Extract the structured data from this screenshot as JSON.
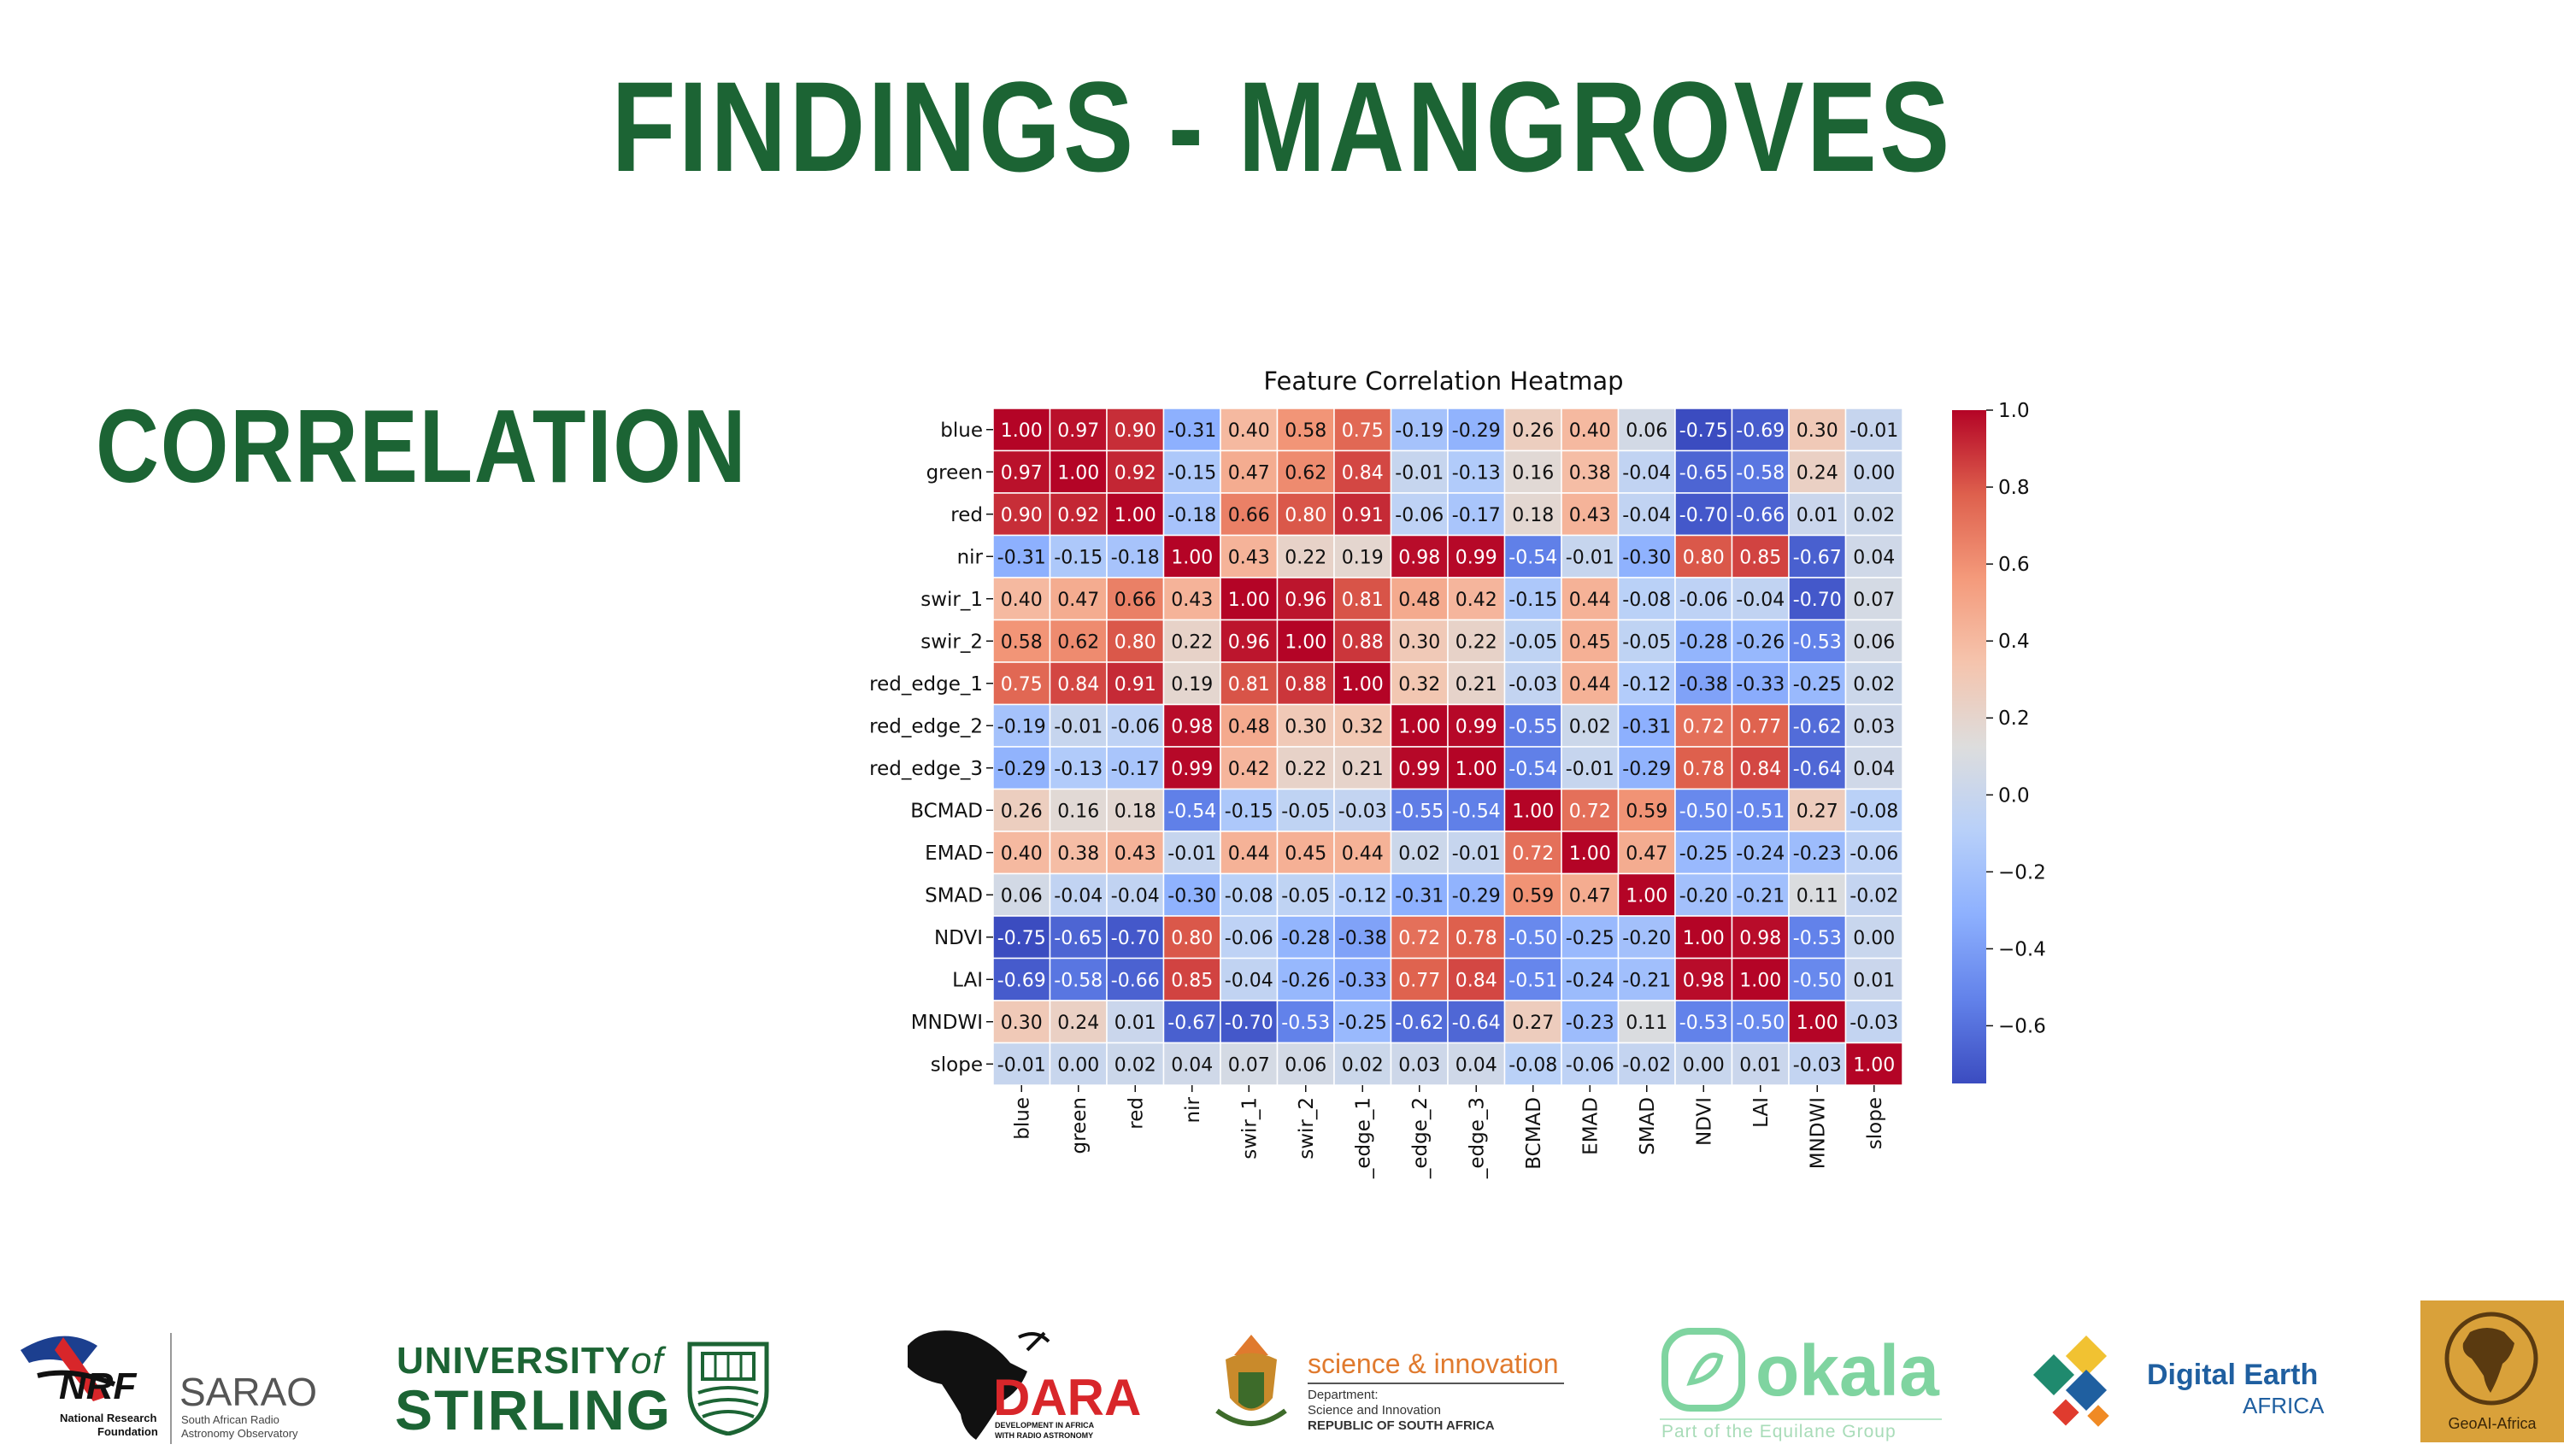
{
  "slide": {
    "title": "FINDINGS - MANGROVES",
    "section": "CORRELATION"
  },
  "chart_data": {
    "type": "heatmap",
    "title": "Feature Correlation Heatmap",
    "rows": [
      "blue",
      "green",
      "red",
      "nir",
      "swir_1",
      "swir_2",
      "red_edge_1",
      "red_edge_2",
      "red_edge_3",
      "BCMAD",
      "EMAD",
      "SMAD",
      "NDVI",
      "LAI",
      "MNDWI",
      "slope"
    ],
    "columns": [
      "blue",
      "green",
      "red",
      "nir",
      "swir_1",
      "swir_2",
      "_edge_1",
      "_edge_2",
      "_edge_3",
      "BCMAD",
      "EMAD",
      "SMAD",
      "NDVI",
      "LAI",
      "MNDWI",
      "slope"
    ],
    "values": [
      [
        1.0,
        0.97,
        0.9,
        -0.31,
        0.4,
        0.58,
        0.75,
        -0.19,
        -0.29,
        0.26,
        0.4,
        0.06,
        -0.75,
        -0.69,
        0.3,
        -0.01
      ],
      [
        0.97,
        1.0,
        0.92,
        -0.15,
        0.47,
        0.62,
        0.84,
        -0.01,
        -0.13,
        0.16,
        0.38,
        -0.04,
        -0.65,
        -0.58,
        0.24,
        -0.0
      ],
      [
        0.9,
        0.92,
        1.0,
        -0.18,
        0.66,
        0.8,
        0.91,
        -0.06,
        -0.17,
        0.18,
        0.43,
        -0.04,
        -0.7,
        -0.66,
        0.01,
        0.02
      ],
      [
        -0.31,
        -0.15,
        -0.18,
        1.0,
        0.43,
        0.22,
        0.19,
        0.98,
        0.99,
        -0.54,
        -0.01,
        -0.3,
        0.8,
        0.85,
        -0.67,
        0.04
      ],
      [
        0.4,
        0.47,
        0.66,
        0.43,
        1.0,
        0.96,
        0.81,
        0.48,
        0.42,
        -0.15,
        0.44,
        -0.08,
        -0.06,
        -0.04,
        -0.7,
        0.07
      ],
      [
        0.58,
        0.62,
        0.8,
        0.22,
        0.96,
        1.0,
        0.88,
        0.3,
        0.22,
        -0.05,
        0.45,
        -0.05,
        -0.28,
        -0.26,
        -0.53,
        0.06
      ],
      [
        0.75,
        0.84,
        0.91,
        0.19,
        0.81,
        0.88,
        1.0,
        0.32,
        0.21,
        -0.03,
        0.44,
        -0.12,
        -0.38,
        -0.33,
        -0.25,
        0.02
      ],
      [
        -0.19,
        -0.01,
        -0.06,
        0.98,
        0.48,
        0.3,
        0.32,
        1.0,
        0.99,
        -0.55,
        0.02,
        -0.31,
        0.72,
        0.77,
        -0.62,
        0.03
      ],
      [
        -0.29,
        -0.13,
        -0.17,
        0.99,
        0.42,
        0.22,
        0.21,
        0.99,
        1.0,
        -0.54,
        -0.01,
        -0.29,
        0.78,
        0.84,
        -0.64,
        0.04
      ],
      [
        0.26,
        0.16,
        0.18,
        -0.54,
        -0.15,
        -0.05,
        -0.03,
        -0.55,
        -0.54,
        1.0,
        0.72,
        0.59,
        -0.5,
        -0.51,
        0.27,
        -0.08
      ],
      [
        0.4,
        0.38,
        0.43,
        -0.01,
        0.44,
        0.45,
        0.44,
        0.02,
        -0.01,
        0.72,
        1.0,
        0.47,
        -0.25,
        -0.24,
        -0.23,
        -0.06
      ],
      [
        0.06,
        -0.04,
        -0.04,
        -0.3,
        -0.08,
        -0.05,
        -0.12,
        -0.31,
        -0.29,
        0.59,
        0.47,
        1.0,
        -0.2,
        -0.21,
        0.11,
        -0.02
      ],
      [
        -0.75,
        -0.65,
        -0.7,
        0.8,
        -0.06,
        -0.28,
        -0.38,
        0.72,
        0.78,
        -0.5,
        -0.25,
        -0.2,
        1.0,
        0.98,
        -0.53,
        0.0
      ],
      [
        -0.69,
        -0.58,
        -0.66,
        0.85,
        -0.04,
        -0.26,
        -0.33,
        0.77,
        0.84,
        -0.51,
        -0.24,
        -0.21,
        0.98,
        1.0,
        -0.5,
        0.01
      ],
      [
        0.3,
        0.24,
        0.01,
        -0.67,
        -0.7,
        -0.53,
        -0.25,
        -0.62,
        -0.64,
        0.27,
        -0.23,
        0.11,
        -0.53,
        -0.5,
        1.0,
        -0.03
      ],
      [
        -0.01,
        -0.0,
        0.02,
        0.04,
        0.07,
        0.06,
        0.02,
        0.03,
        0.04,
        -0.08,
        -0.06,
        -0.02,
        0.0,
        0.01,
        -0.03,
        1.0
      ]
    ],
    "colormap": "coolwarm",
    "vmin": -0.75,
    "vmax": 1.0,
    "colorbar_ticks": [
      "1.0",
      "0.8",
      "0.6",
      "0.4",
      "0.2",
      "0.0",
      "−0.2",
      "−0.4",
      "−0.6"
    ],
    "colorbar_tick_values": [
      1.0,
      0.8,
      0.6,
      0.4,
      0.2,
      0.0,
      -0.2,
      -0.4,
      -0.6
    ]
  },
  "logos": {
    "nrf": {
      "abbr": "NRF",
      "line1": "National Research",
      "line2": "Foundation"
    },
    "sarao": {
      "name": "SARAO",
      "line1": "South African Radio",
      "line2": "Astronomy Observatory"
    },
    "stirling": {
      "line1": "UNIVERSITY",
      "of": "of",
      "line2": "STIRLING"
    },
    "dara": {
      "name": "DARA",
      "tagline1": "DEVELOPMENT IN AFRICA",
      "tagline2": "WITH RADIO ASTRONOMY"
    },
    "dsi": {
      "name": "science & innovation",
      "line1": "Department:",
      "line2": "Science and Innovation",
      "line3": "REPUBLIC OF SOUTH AFRICA"
    },
    "okala": {
      "name": "okala",
      "tagline": "Part of the Equilane Group"
    },
    "dea": {
      "line1": "Digital Earth",
      "line2": "AFRICA"
    },
    "geoai": {
      "name": "GeoAI-Africa"
    },
    "colors": {
      "title_green": "#1c6434",
      "dsi_orange": "#e07a2e",
      "dea_blue": "#1f5fa0",
      "okala_green": "#7fd4a0",
      "geoai_gold": "#d9a13a"
    }
  }
}
